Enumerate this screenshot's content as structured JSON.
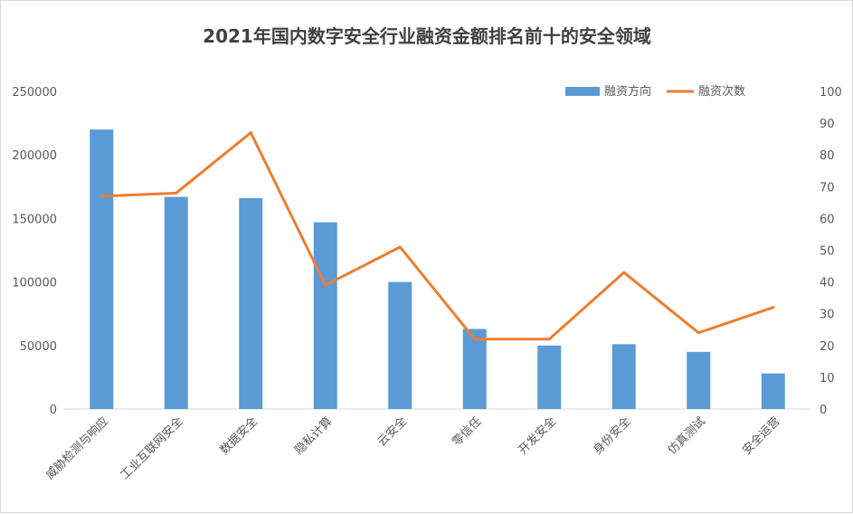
{
  "chart_data": {
    "type": "bar",
    "title": "2021年国内数字安全行业融资金额排名前十的安全领域",
    "categories": [
      "威胁检测与响应",
      "工业互联网安全",
      "数据安全",
      "隐私计算",
      "云安全",
      "零信任",
      "开发安全",
      "身份安全",
      "仿真测试",
      "安全运营"
    ],
    "series": [
      {
        "name": "融资方向",
        "type": "bar",
        "axis": "left",
        "color": "#5b9bd5",
        "values": [
          220000,
          167000,
          166000,
          147000,
          100000,
          63000,
          50000,
          51000,
          45000,
          28000
        ]
      },
      {
        "name": "融资次数",
        "type": "line",
        "axis": "right",
        "color": "#ed7d31",
        "values": [
          67,
          68,
          87,
          39,
          51,
          22,
          22,
          43,
          24,
          32
        ]
      }
    ],
    "y_left": {
      "min": 0,
      "max": 250000,
      "ticks": [
        0,
        50000,
        100000,
        150000,
        200000,
        250000
      ]
    },
    "y_right": {
      "min": 0,
      "max": 100,
      "ticks": [
        0,
        10,
        20,
        30,
        40,
        50,
        60,
        70,
        80,
        90,
        100
      ]
    },
    "legend_position": "top-right",
    "grid": false
  }
}
